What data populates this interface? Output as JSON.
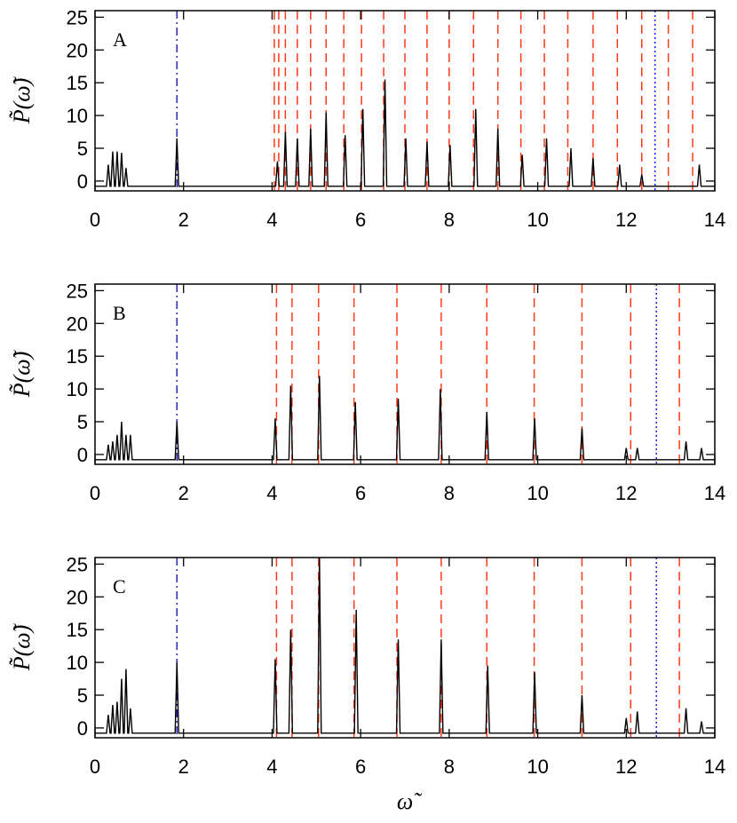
{
  "chart_data": [
    {
      "type": "line",
      "label": "A",
      "ylabel": "P̃(ω̃)",
      "color": "#000000",
      "xlim": [
        0,
        14
      ],
      "ylim": [
        -1.5,
        26
      ],
      "xticks": [
        0,
        2,
        4,
        6,
        8,
        10,
        12,
        14
      ],
      "yticks": [
        0,
        5,
        10,
        15,
        20,
        25
      ],
      "x": [
        0,
        0.26,
        0.3,
        0.34,
        0.36,
        0.4,
        0.44,
        0.46,
        0.5,
        0.54,
        0.56,
        0.6,
        0.64,
        0.66,
        0.7,
        0.74,
        1.81,
        1.85,
        1.89,
        4.08,
        4.12,
        4.16,
        4.26,
        4.3,
        4.34,
        4.53,
        4.57,
        4.61,
        4.83,
        4.87,
        4.91,
        5.18,
        5.22,
        5.26,
        5.61,
        5.65,
        5.69,
        6.01,
        6.05,
        6.09,
        6.51,
        6.55,
        6.59,
        6.98,
        7.02,
        7.06,
        7.46,
        7.5,
        7.54,
        7.98,
        8.02,
        8.06,
        8.56,
        8.6,
        8.64,
        9.06,
        9.1,
        9.14,
        9.61,
        9.65,
        9.69,
        10.16,
        10.2,
        10.24,
        10.71,
        10.75,
        10.79,
        11.21,
        11.25,
        11.29,
        11.81,
        11.85,
        11.89,
        12.31,
        12.35,
        12.39,
        13.61,
        13.65,
        13.69,
        14
      ],
      "values": [
        -0.8,
        -0.8,
        2.5,
        -0.8,
        -0.8,
        4.5,
        -0.8,
        -0.8,
        4.5,
        -0.8,
        -0.8,
        4.3,
        -0.8,
        -0.8,
        2,
        -0.8,
        -0.8,
        6.5,
        -0.8,
        -0.8,
        3,
        -0.8,
        -0.8,
        7.5,
        -0.8,
        -0.8,
        6.5,
        -0.8,
        -0.8,
        8,
        -0.8,
        -0.8,
        10.5,
        -0.8,
        -0.8,
        7,
        -0.8,
        -0.8,
        11,
        -0.8,
        -0.8,
        15.5,
        -0.8,
        -0.8,
        6.5,
        -0.8,
        -0.8,
        6,
        -0.8,
        -0.8,
        5.5,
        -0.8,
        -0.8,
        11,
        -0.8,
        -0.8,
        8,
        -0.8,
        -0.8,
        4,
        -0.8,
        -0.8,
        6.5,
        -0.8,
        -0.8,
        5,
        -0.8,
        -0.8,
        3.5,
        -0.8,
        -0.8,
        2.5,
        -0.8,
        -0.8,
        1,
        -0.8,
        -0.8,
        2.5,
        -0.8,
        -0.8
      ],
      "vlines": [
        {
          "x": 1.85,
          "color": "#2a2aaa",
          "style": "dashdot"
        },
        {
          "x": 4.05,
          "color": "#ff3a1a",
          "style": "dashed"
        },
        {
          "x": 4.15,
          "color": "#ff3a1a",
          "style": "dashed"
        },
        {
          "x": 4.3,
          "color": "#ff3a1a",
          "style": "dashed"
        },
        {
          "x": 4.57,
          "color": "#ff3a1a",
          "style": "dashed"
        },
        {
          "x": 4.87,
          "color": "#ff3a1a",
          "style": "dashed"
        },
        {
          "x": 5.22,
          "color": "#ff3a1a",
          "style": "dashed"
        },
        {
          "x": 5.62,
          "color": "#ff3a1a",
          "style": "dashed"
        },
        {
          "x": 6.02,
          "color": "#ff3a1a",
          "style": "dashed"
        },
        {
          "x": 6.52,
          "color": "#ff3a1a",
          "style": "dashed"
        },
        {
          "x": 7.0,
          "color": "#ff3a1a",
          "style": "dashed"
        },
        {
          "x": 7.5,
          "color": "#ff3a1a",
          "style": "dashed"
        },
        {
          "x": 8.0,
          "color": "#ff3a1a",
          "style": "dashed"
        },
        {
          "x": 8.55,
          "color": "#ff3a1a",
          "style": "dashed"
        },
        {
          "x": 9.1,
          "color": "#ff3a1a",
          "style": "dashed"
        },
        {
          "x": 9.62,
          "color": "#ff3a1a",
          "style": "dashed"
        },
        {
          "x": 10.15,
          "color": "#ff3a1a",
          "style": "dashed"
        },
        {
          "x": 10.68,
          "color": "#ff3a1a",
          "style": "dashed"
        },
        {
          "x": 11.25,
          "color": "#ff3a1a",
          "style": "dashed"
        },
        {
          "x": 11.8,
          "color": "#ff3a1a",
          "style": "dashed"
        },
        {
          "x": 12.35,
          "color": "#ff3a1a",
          "style": "dashed"
        },
        {
          "x": 12.95,
          "color": "#ff3a1a",
          "style": "dashed"
        },
        {
          "x": 13.5,
          "color": "#ff3a1a",
          "style": "dashed"
        },
        {
          "x": 12.65,
          "color": "#1a1aff",
          "style": "dotted"
        }
      ]
    },
    {
      "type": "line",
      "label": "B",
      "ylabel": "P̃(ω̃)",
      "color": "#000000",
      "xlim": [
        0,
        14
      ],
      "ylim": [
        -1.5,
        26
      ],
      "xticks": [
        0,
        2,
        4,
        6,
        8,
        10,
        12,
        14
      ],
      "yticks": [
        0,
        5,
        10,
        15,
        20,
        25
      ],
      "x": [
        0,
        0.26,
        0.3,
        0.34,
        0.36,
        0.4,
        0.44,
        0.46,
        0.5,
        0.54,
        0.56,
        0.6,
        0.64,
        0.66,
        0.7,
        0.74,
        0.76,
        0.8,
        0.84,
        1.81,
        1.85,
        1.89,
        4.03,
        4.07,
        4.11,
        4.38,
        4.42,
        4.46,
        5.03,
        5.07,
        5.11,
        5.84,
        5.88,
        5.92,
        6.81,
        6.85,
        6.89,
        7.76,
        7.8,
        7.84,
        8.81,
        8.85,
        8.89,
        9.89,
        9.93,
        9.97,
        10.96,
        11.0,
        11.04,
        11.96,
        12.0,
        12.04,
        12.21,
        12.25,
        12.29,
        13.31,
        13.35,
        13.39,
        13.66,
        13.7,
        13.74,
        14
      ],
      "values": [
        -0.8,
        -0.8,
        1.5,
        -0.8,
        -0.8,
        2,
        -0.8,
        -0.8,
        3,
        -0.8,
        -0.8,
        5,
        -0.8,
        -0.8,
        3,
        -0.8,
        -0.8,
        3,
        -0.8,
        -0.8,
        5,
        -0.8,
        -0.8,
        5.5,
        -0.8,
        -0.8,
        10.5,
        -0.8,
        -0.8,
        12,
        -0.8,
        -0.8,
        8,
        -0.8,
        -0.8,
        8.5,
        -0.8,
        -0.8,
        10,
        -0.8,
        -0.8,
        6.5,
        -0.8,
        -0.8,
        5.5,
        -0.8,
        -0.8,
        4,
        -0.8,
        -0.8,
        1,
        -0.8,
        -0.8,
        1,
        -0.8,
        -0.8,
        2,
        -0.8,
        -0.8,
        1,
        -0.8,
        -0.8
      ],
      "vlines": [
        {
          "x": 1.85,
          "color": "#2a2aaa",
          "style": "dashdot"
        },
        {
          "x": 4.1,
          "color": "#ff3a1a",
          "style": "dashed"
        },
        {
          "x": 4.45,
          "color": "#ff3a1a",
          "style": "dashed"
        },
        {
          "x": 5.05,
          "color": "#ff3a1a",
          "style": "dashed"
        },
        {
          "x": 5.85,
          "color": "#ff3a1a",
          "style": "dashed"
        },
        {
          "x": 6.82,
          "color": "#ff3a1a",
          "style": "dashed"
        },
        {
          "x": 7.82,
          "color": "#ff3a1a",
          "style": "dashed"
        },
        {
          "x": 8.85,
          "color": "#ff3a1a",
          "style": "dashed"
        },
        {
          "x": 9.92,
          "color": "#ff3a1a",
          "style": "dashed"
        },
        {
          "x": 11.0,
          "color": "#ff3a1a",
          "style": "dashed"
        },
        {
          "x": 12.1,
          "color": "#ff3a1a",
          "style": "dashed"
        },
        {
          "x": 13.2,
          "color": "#ff3a1a",
          "style": "dashed"
        },
        {
          "x": 12.68,
          "color": "#1a1aff",
          "style": "dotted"
        }
      ]
    },
    {
      "type": "line",
      "label": "C",
      "ylabel": "P̃(ω̃)",
      "xlabel": "ω̃",
      "color": "#000000",
      "xlim": [
        0,
        14
      ],
      "ylim": [
        -1.5,
        26
      ],
      "xticks": [
        0,
        2,
        4,
        6,
        8,
        10,
        12,
        14
      ],
      "yticks": [
        0,
        5,
        10,
        15,
        20,
        25
      ],
      "x": [
        0,
        0.26,
        0.3,
        0.34,
        0.36,
        0.4,
        0.44,
        0.46,
        0.5,
        0.54,
        0.56,
        0.6,
        0.64,
        0.66,
        0.7,
        0.74,
        0.76,
        0.8,
        0.84,
        1.81,
        1.85,
        1.89,
        4.03,
        4.07,
        4.11,
        4.38,
        4.42,
        4.46,
        5.03,
        5.07,
        5.11,
        5.86,
        5.9,
        5.94,
        6.81,
        6.85,
        6.89,
        7.78,
        7.82,
        7.86,
        8.83,
        8.87,
        8.91,
        9.89,
        9.93,
        9.97,
        10.96,
        11.0,
        11.04,
        11.96,
        12.0,
        12.04,
        12.21,
        12.25,
        12.29,
        13.31,
        13.35,
        13.39,
        13.66,
        13.7,
        13.74,
        14
      ],
      "values": [
        -0.8,
        -0.8,
        2,
        -0.8,
        -0.8,
        3.5,
        -0.8,
        -0.8,
        4,
        -0.8,
        -0.8,
        7.5,
        -0.8,
        -0.8,
        9,
        -0.8,
        -0.8,
        3,
        -0.8,
        -0.8,
        10,
        -0.8,
        -0.8,
        10.5,
        -0.8,
        -0.8,
        15,
        -0.8,
        -0.8,
        26,
        -0.8,
        -0.8,
        18,
        -0.8,
        -0.8,
        13.5,
        -0.8,
        -0.8,
        13.5,
        -0.8,
        -0.8,
        9.5,
        -0.8,
        -0.8,
        8.5,
        -0.8,
        -0.8,
        5,
        -0.8,
        -0.8,
        1.5,
        -0.8,
        -0.8,
        2.5,
        -0.8,
        -0.8,
        3,
        -0.8,
        -0.8,
        1,
        -0.8,
        -0.8
      ],
      "vlines": [
        {
          "x": 1.85,
          "color": "#2a2aaa",
          "style": "dashdot"
        },
        {
          "x": 4.1,
          "color": "#ff3a1a",
          "style": "dashed"
        },
        {
          "x": 4.45,
          "color": "#ff3a1a",
          "style": "dashed"
        },
        {
          "x": 5.05,
          "color": "#ff3a1a",
          "style": "dashed"
        },
        {
          "x": 5.85,
          "color": "#ff3a1a",
          "style": "dashed"
        },
        {
          "x": 6.82,
          "color": "#ff3a1a",
          "style": "dashed"
        },
        {
          "x": 7.82,
          "color": "#ff3a1a",
          "style": "dashed"
        },
        {
          "x": 8.85,
          "color": "#ff3a1a",
          "style": "dashed"
        },
        {
          "x": 9.92,
          "color": "#ff3a1a",
          "style": "dashed"
        },
        {
          "x": 11.0,
          "color": "#ff3a1a",
          "style": "dashed"
        },
        {
          "x": 12.1,
          "color": "#ff3a1a",
          "style": "dashed"
        },
        {
          "x": 13.2,
          "color": "#ff3a1a",
          "style": "dashed"
        },
        {
          "x": 12.68,
          "color": "#1a1aff",
          "style": "dotted"
        }
      ]
    }
  ]
}
